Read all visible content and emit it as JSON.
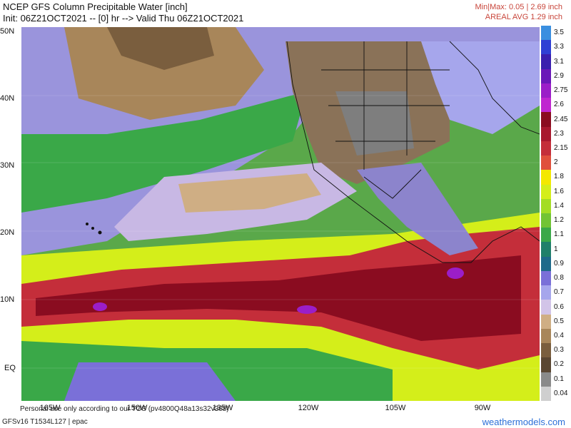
{
  "header": {
    "title_line1": "NCEP GFS Column Precipitable Water [inch]",
    "title_line2": "Init: 06Z21OCT2021 -- [0] hr --> Valid Thu 06Z21OCT2021",
    "minmax": "Min|Max: 0.05 | 2.69 inch",
    "areal_avg": "AREAL AVG 1.29 inch"
  },
  "map": {
    "lat_labels": [
      "50N",
      "40N",
      "30N",
      "20N",
      "10N",
      "EQ"
    ],
    "lon_labels": [
      "165W",
      "150W",
      "135W",
      "120W",
      "105W",
      "90W"
    ]
  },
  "colorbar": {
    "labels": [
      "3.5",
      "3.3",
      "3.1",
      "2.9",
      "2.75",
      "2.6",
      "2.45",
      "2.3",
      "2.15",
      "2",
      "1.8",
      "1.6",
      "1.4",
      "1.2",
      "1.1",
      "1",
      "0.9",
      "0.8",
      "0.7",
      "0.6",
      "0.5",
      "0.4",
      "0.3",
      "0.2",
      "0.1",
      "0.04"
    ],
    "colors": [
      "#3a8fe0",
      "#2f3fd4",
      "#3a1fae",
      "#6a18b8",
      "#9b1ec8",
      "#c026d0",
      "#8a0c20",
      "#a8182e",
      "#c42e3a",
      "#e0503c",
      "#f4e800",
      "#d4ee1a",
      "#a4dd24",
      "#72c434",
      "#3aa848",
      "#20806a",
      "#1e6a8a",
      "#7a70d8",
      "#a6a6ec",
      "#d2c4e8",
      "#cfae84",
      "#a8865a",
      "#7a5e3e",
      "#5a4632",
      "#8a8a8a",
      "#cfcfcf"
    ]
  },
  "footer": {
    "disclaimer": "Personal use only according to our TOS (pv4800Q48a13s32v368)",
    "model": "GFSv16 T1534L127 | epac",
    "brand": "weathermodels.com"
  }
}
